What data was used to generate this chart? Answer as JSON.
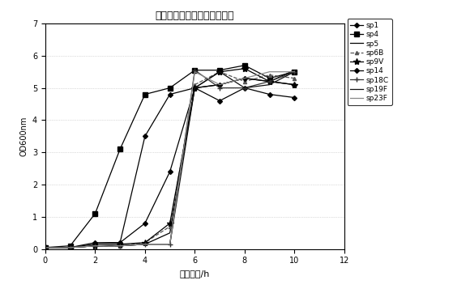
{
  "title": "部分型别肺炎链球菌生长曲线",
  "xlabel": "培养时间/h",
  "ylabel": "OD600nm",
  "xlim": [
    0,
    12
  ],
  "ylim": [
    0,
    7
  ],
  "xticks": [
    0,
    2,
    4,
    6,
    8,
    10,
    12
  ],
  "yticks": [
    0,
    1,
    2,
    3,
    4,
    5,
    6,
    7
  ],
  "series": {
    "sp1": {
      "x": [
        0,
        1,
        2,
        3,
        4,
        5,
        6,
        7,
        8,
        9,
        10
      ],
      "y": [
        0.05,
        0.05,
        0.15,
        0.2,
        3.5,
        4.8,
        5.0,
        4.6,
        5.0,
        4.8,
        4.7
      ],
      "color": "#000000",
      "marker": "D",
      "markersize": 3,
      "linestyle": "-"
    },
    "sp4": {
      "x": [
        0,
        1,
        2,
        3,
        4,
        5,
        6,
        7,
        8,
        9,
        10
      ],
      "y": [
        0.05,
        0.1,
        1.1,
        3.1,
        4.8,
        5.0,
        5.55,
        5.55,
        5.7,
        5.3,
        5.5
      ],
      "color": "#000000",
      "marker": "s",
      "markersize": 4,
      "linestyle": "-"
    },
    "sp5": {
      "x": [
        0,
        1,
        2,
        3,
        4,
        5,
        6,
        7,
        8,
        9,
        10
      ],
      "y": [
        0.05,
        0.05,
        0.1,
        0.1,
        0.15,
        0.5,
        5.0,
        5.1,
        5.3,
        5.2,
        5.55
      ],
      "color": "#000000",
      "marker": null,
      "markersize": 3,
      "linestyle": "-"
    },
    "sp6B": {
      "x": [
        0,
        1,
        2,
        3,
        4,
        5,
        6,
        7,
        8,
        9,
        10
      ],
      "y": [
        0.05,
        0.05,
        0.1,
        0.1,
        0.2,
        0.7,
        5.1,
        5.5,
        5.2,
        5.4,
        5.3
      ],
      "color": "#555555",
      "marker": "^",
      "markersize": 3,
      "linestyle": "--"
    },
    "sp9V": {
      "x": [
        0,
        1,
        2,
        3,
        4,
        5,
        6,
        7,
        8,
        9,
        10
      ],
      "y": [
        0.05,
        0.05,
        0.1,
        0.15,
        0.2,
        0.8,
        5.0,
        5.5,
        5.6,
        5.2,
        5.1
      ],
      "color": "#000000",
      "marker": "*",
      "markersize": 6,
      "linestyle": "-"
    },
    "sp14": {
      "x": [
        0,
        1,
        2,
        3,
        4,
        5,
        6,
        7,
        8,
        9,
        10
      ],
      "y": [
        0.05,
        0.05,
        0.2,
        0.2,
        0.8,
        2.4,
        5.0,
        5.1,
        5.3,
        5.2,
        5.1
      ],
      "color": "#000000",
      "marker": "D",
      "markersize": 3,
      "linestyle": "-"
    },
    "sp18C": {
      "x": [
        0,
        1,
        2,
        3,
        4,
        5,
        6,
        7,
        8,
        9,
        10
      ],
      "y": [
        0.05,
        0.05,
        0.1,
        0.1,
        0.15,
        0.15,
        5.55,
        5.0,
        5.0,
        5.2,
        5.5
      ],
      "color": "#333333",
      "marker": "+",
      "markersize": 5,
      "linestyle": "-"
    },
    "sp19F": {
      "x": [
        0,
        1,
        2,
        3,
        4,
        5,
        6,
        7,
        8,
        9,
        10
      ],
      "y": [
        0.05,
        0.05,
        0.1,
        0.1,
        0.15,
        0.15,
        5.0,
        5.5,
        5.0,
        5.1,
        5.5
      ],
      "color": "#111111",
      "marker": null,
      "markersize": 3,
      "linestyle": "-"
    },
    "sp23F": {
      "x": [
        0,
        1,
        2,
        3,
        4,
        5,
        6,
        7,
        8,
        9,
        10
      ],
      "y": [
        0.05,
        0.05,
        0.1,
        0.1,
        0.15,
        0.15,
        5.5,
        5.1,
        5.3,
        5.5,
        5.5
      ],
      "color": "#888888",
      "marker": null,
      "markersize": 3,
      "linestyle": "-"
    }
  },
  "background_color": "#ffffff",
  "grid_color": "#bbbbbb"
}
